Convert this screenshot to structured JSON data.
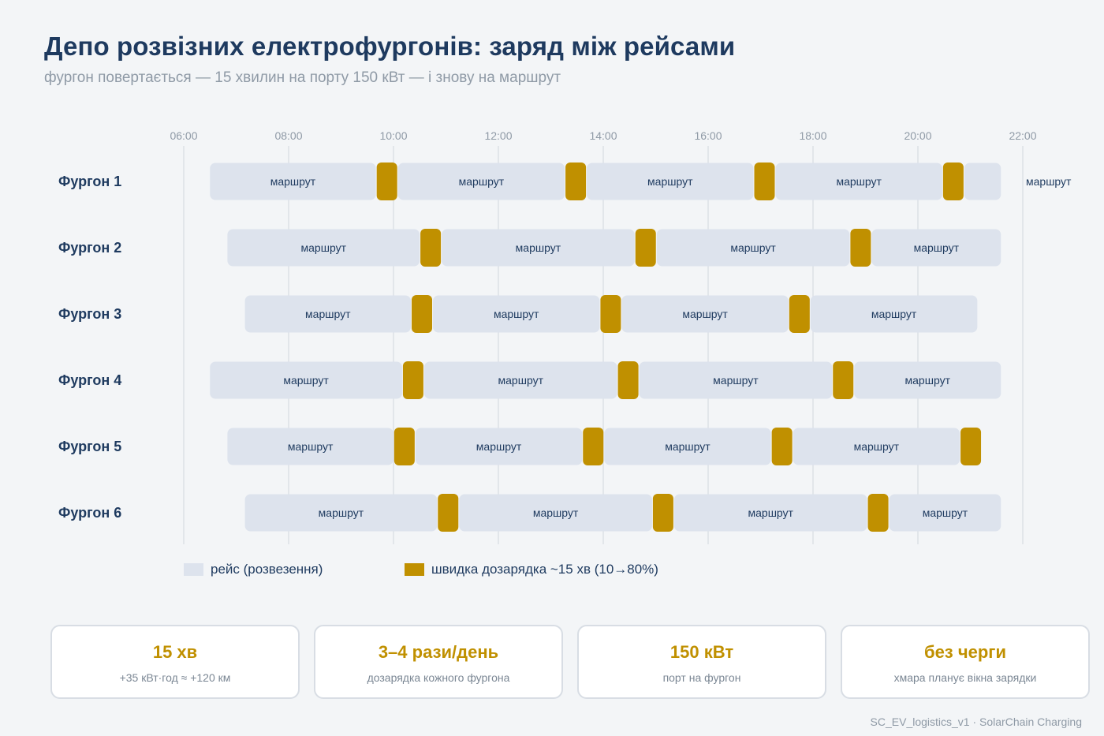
{
  "title": "Депо розвізних електрофургонів: заряд між рейсами",
  "subtitle": "фургон повертається — 15 хвилин на порту 150 кВт — і знову на маршрут",
  "colors": {
    "trip": "#dde3ed",
    "charge": "#c09000",
    "title": "#1e3a5f",
    "muted": "#8f9aa6",
    "grid": "#d6dbe2"
  },
  "legend": {
    "trip": "рейс (розвезення)",
    "charge": "швидка дозарядка ~15 хв (10→80%)"
  },
  "chart_data": {
    "type": "gantt",
    "x_ticks": [
      "06:00",
      "08:00",
      "10:00",
      "12:00",
      "14:00",
      "16:00",
      "18:00",
      "20:00",
      "22:00"
    ],
    "xlim": [
      "06:00",
      "22:00"
    ],
    "grid": "vertical",
    "trip_label": "маршрут",
    "rows": [
      {
        "name": "Фургон 1",
        "start": "06:30",
        "end": "21:35",
        "charges": [
          "09:45",
          "13:21",
          "16:57",
          "20:33"
        ],
        "last_label_outside": true
      },
      {
        "name": "Фургон 2",
        "start": "06:50",
        "end": "21:35",
        "charges": [
          "10:35",
          "14:41",
          "18:47"
        ]
      },
      {
        "name": "Фургон 3",
        "start": "07:10",
        "end": "21:08",
        "charges": [
          "10:25",
          "14:01",
          "17:37"
        ]
      },
      {
        "name": "Фургон 4",
        "start": "06:30",
        "end": "21:35",
        "charges": [
          "10:15",
          "14:21",
          "18:27"
        ]
      },
      {
        "name": "Фургон 5",
        "start": "06:50",
        "end": "21:12",
        "charges": [
          "10:05",
          "13:41",
          "17:17",
          "20:53"
        ]
      },
      {
        "name": "Фургон 6",
        "start": "07:10",
        "end": "21:35",
        "charges": [
          "10:55",
          "15:01",
          "19:07"
        ]
      }
    ]
  },
  "stats": [
    {
      "value": "15 хв",
      "caption": "+35 кВт·год ≈ +120 км"
    },
    {
      "value": "3–4 рази/день",
      "caption": "дозарядка кожного фургона"
    },
    {
      "value": "150 кВт",
      "caption": "порт на фургон"
    },
    {
      "value": "без черги",
      "caption": "хмара планує вікна зарядки"
    }
  ],
  "footer": "SC_EV_logistics_v1 · SolarChain Charging"
}
